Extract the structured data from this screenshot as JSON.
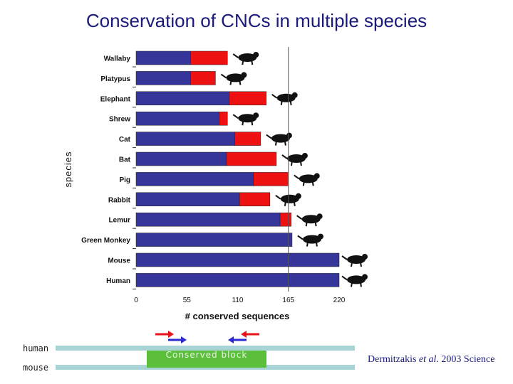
{
  "title": "Conservation of CNCs in multiple species",
  "chart_data": {
    "type": "bar",
    "orientation": "horizontal",
    "stacked": true,
    "categories": [
      "Wallaby",
      "Platypus",
      "Elephant",
      "Shrew",
      "Cat",
      "Bat",
      "Pig",
      "Rabbit",
      "Lemur",
      "Green Monkey",
      "Mouse",
      "Human"
    ],
    "series": [
      {
        "name": "blue",
        "color": "#35359a",
        "values": [
          59,
          59,
          101,
          90,
          107,
          98,
          127,
          112,
          156,
          169,
          220,
          220
        ]
      },
      {
        "name": "red",
        "color": "#ee1111",
        "values": [
          40,
          27,
          40,
          9,
          28,
          54,
          38,
          33,
          12,
          0,
          0,
          0
        ]
      }
    ],
    "xlabel": "# conserved sequences",
    "ylabel": "species",
    "xlim": [
      0,
      220
    ],
    "xticks": [
      0,
      55,
      110,
      165,
      220
    ],
    "reference_line": 165
  },
  "diagram": {
    "human_label": "human",
    "mouse_label": "mouse",
    "block_label": "Conserved block",
    "arrow_red_color": "#e8141a",
    "arrow_blue_color": "#2b2bd0",
    "track_color": "#a9d4d6",
    "block_color": "#5bbf3c"
  },
  "citation": {
    "authors": "Dermitzakis",
    "etal": "et al.",
    "rest": "2003 Science"
  }
}
